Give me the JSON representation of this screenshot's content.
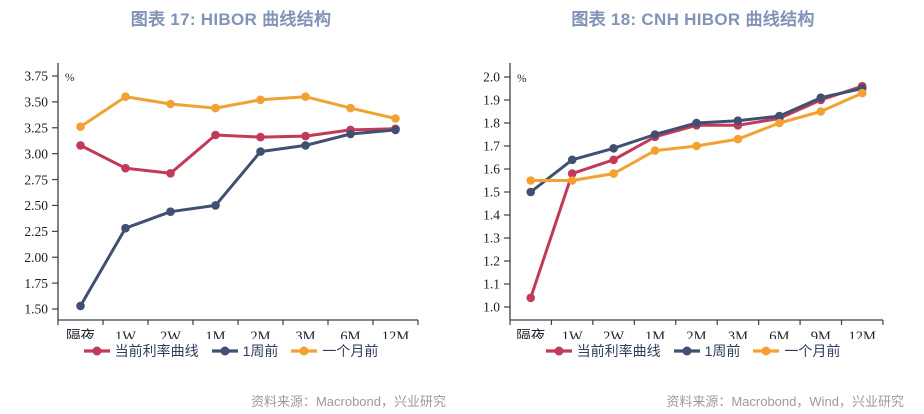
{
  "figure": {
    "background": "#ffffff",
    "title_color": "#8194b7",
    "axis_color": "#39404f",
    "source_color": "#9b9b9b"
  },
  "chart_data": [
    {
      "type": "line",
      "title": "图表 17: HIBOR 曲线结构",
      "unit": "%",
      "source": "资料来源：Macrobond，兴业研究",
      "categories": [
        "隔夜",
        "1W",
        "2W",
        "1M",
        "2M",
        "3M",
        "6M",
        "12M"
      ],
      "ylim": [
        1.5,
        3.75
      ],
      "ystep": 0.25,
      "ydecimals": 2,
      "grid": false,
      "legend_position": "bottom",
      "series": [
        {
          "name": "当前利率曲线",
          "color": "#c23a5a",
          "values": [
            3.08,
            2.86,
            2.81,
            3.18,
            3.16,
            3.17,
            3.23,
            3.24
          ]
        },
        {
          "name": "1周前",
          "color": "#404f72",
          "values": [
            1.53,
            2.28,
            2.44,
            2.5,
            3.02,
            3.08,
            3.19,
            3.23
          ]
        },
        {
          "name": "一个月前",
          "color": "#f2a232",
          "values": [
            3.26,
            3.55,
            3.48,
            3.44,
            3.52,
            3.55,
            3.44,
            3.34
          ]
        }
      ]
    },
    {
      "type": "line",
      "title": "图表 18: CNH HIBOR 曲线结构",
      "unit": "%",
      "source": "资料来源：Macrobond，Wind，兴业研究",
      "categories": [
        "隔夜",
        "1W",
        "2W",
        "1M",
        "2M",
        "3M",
        "6M",
        "9M",
        "12M"
      ],
      "ylim": [
        1.0,
        2.0
      ],
      "ystep": 0.1,
      "ydecimals": 1,
      "grid": false,
      "legend_position": "bottom",
      "series": [
        {
          "name": "当前利率曲线",
          "color": "#c23a5a",
          "values": [
            1.04,
            1.58,
            1.64,
            1.74,
            1.79,
            1.79,
            1.82,
            1.9,
            1.96
          ]
        },
        {
          "name": "1周前",
          "color": "#404f72",
          "values": [
            1.5,
            1.64,
            1.69,
            1.75,
            1.8,
            1.81,
            1.83,
            1.91,
            1.95
          ]
        },
        {
          "name": "一个月前",
          "color": "#f2a232",
          "values": [
            1.55,
            1.55,
            1.58,
            1.68,
            1.7,
            1.73,
            1.8,
            1.85,
            1.93
          ]
        }
      ]
    }
  ]
}
